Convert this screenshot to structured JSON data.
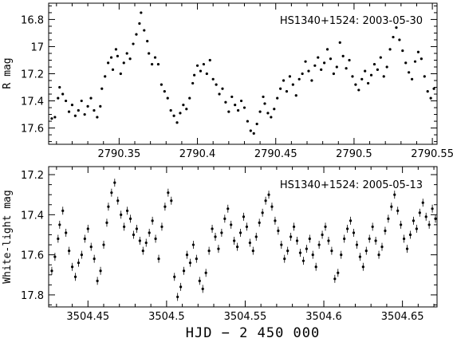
{
  "xlabel": "HJD − 2 450 000",
  "chart_data": [
    {
      "type": "scatter",
      "annotation": "HS1340+1524: 2003-05-30",
      "ylabel": "R mag",
      "xlim": [
        2790.305,
        2790.553
      ],
      "ylim": [
        17.72,
        16.68
      ],
      "y_inverted": true,
      "xticks": [
        2790.35,
        2790.4,
        2790.45,
        2790.5,
        2790.55
      ],
      "xtick_labels": [
        "2790.35",
        "2790.4",
        "2790.45",
        "2790.5",
        "2790.55"
      ],
      "yticks": [
        16.8,
        17.0,
        17.2,
        17.4,
        17.6
      ],
      "ytick_labels": [
        "16.8",
        "17",
        "17.2",
        "17.4",
        "17.6"
      ],
      "points": [
        [
          2790.307,
          17.53
        ],
        [
          2790.309,
          17.52
        ],
        [
          2790.311,
          17.38
        ],
        [
          2790.312,
          17.3
        ],
        [
          2790.314,
          17.35
        ],
        [
          2790.316,
          17.4
        ],
        [
          2790.318,
          17.48
        ],
        [
          2790.32,
          17.43
        ],
        [
          2790.322,
          17.51
        ],
        [
          2790.324,
          17.47
        ],
        [
          2790.326,
          17.4
        ],
        [
          2790.328,
          17.5
        ],
        [
          2790.33,
          17.44
        ],
        [
          2790.332,
          17.38
        ],
        [
          2790.334,
          17.47
        ],
        [
          2790.336,
          17.52
        ],
        [
          2790.338,
          17.44
        ],
        [
          2790.339,
          17.31
        ],
        [
          2790.341,
          17.22
        ],
        [
          2790.343,
          17.12
        ],
        [
          2790.345,
          17.08
        ],
        [
          2790.346,
          17.17
        ],
        [
          2790.348,
          17.02
        ],
        [
          2790.349,
          17.07
        ],
        [
          2790.351,
          17.2
        ],
        [
          2790.353,
          17.12
        ],
        [
          2790.355,
          17.05
        ],
        [
          2790.357,
          17.09
        ],
        [
          2790.359,
          16.98
        ],
        [
          2790.361,
          16.91
        ],
        [
          2790.363,
          16.83
        ],
        [
          2790.364,
          16.75
        ],
        [
          2790.366,
          16.88
        ],
        [
          2790.368,
          16.96
        ],
        [
          2790.369,
          17.05
        ],
        [
          2790.371,
          17.13
        ],
        [
          2790.373,
          17.08
        ],
        [
          2790.375,
          17.13
        ],
        [
          2790.377,
          17.28
        ],
        [
          2790.379,
          17.33
        ],
        [
          2790.381,
          17.38
        ],
        [
          2790.383,
          17.47
        ],
        [
          2790.385,
          17.51
        ],
        [
          2790.387,
          17.56
        ],
        [
          2790.389,
          17.49
        ],
        [
          2790.391,
          17.43
        ],
        [
          2790.393,
          17.46
        ],
        [
          2790.395,
          17.38
        ],
        [
          2790.397,
          17.27
        ],
        [
          2790.398,
          17.21
        ],
        [
          2790.4,
          17.14
        ],
        [
          2790.402,
          17.18
        ],
        [
          2790.404,
          17.13
        ],
        [
          2790.406,
          17.2
        ],
        [
          2790.408,
          17.1
        ],
        [
          2790.41,
          17.24
        ],
        [
          2790.412,
          17.28
        ],
        [
          2790.414,
          17.35
        ],
        [
          2790.416,
          17.31
        ],
        [
          2790.418,
          17.41
        ],
        [
          2790.42,
          17.48
        ],
        [
          2790.422,
          17.37
        ],
        [
          2790.424,
          17.43
        ],
        [
          2790.426,
          17.47
        ],
        [
          2790.428,
          17.4
        ],
        [
          2790.43,
          17.45
        ],
        [
          2790.432,
          17.55
        ],
        [
          2790.434,
          17.62
        ],
        [
          2790.436,
          17.64
        ],
        [
          2790.438,
          17.57
        ],
        [
          2790.44,
          17.48
        ],
        [
          2790.442,
          17.37
        ],
        [
          2790.443,
          17.42
        ],
        [
          2790.445,
          17.49
        ],
        [
          2790.447,
          17.52
        ],
        [
          2790.449,
          17.46
        ],
        [
          2790.451,
          17.38
        ],
        [
          2790.453,
          17.31
        ],
        [
          2790.455,
          17.25
        ],
        [
          2790.457,
          17.33
        ],
        [
          2790.459,
          17.22
        ],
        [
          2790.461,
          17.28
        ],
        [
          2790.463,
          17.36
        ],
        [
          2790.465,
          17.24
        ],
        [
          2790.467,
          17.2
        ],
        [
          2790.469,
          17.11
        ],
        [
          2790.471,
          17.18
        ],
        [
          2790.473,
          17.25
        ],
        [
          2790.475,
          17.14
        ],
        [
          2790.477,
          17.08
        ],
        [
          2790.479,
          17.17
        ],
        [
          2790.481,
          17.12
        ],
        [
          2790.483,
          17.02
        ],
        [
          2790.485,
          17.09
        ],
        [
          2790.487,
          17.2
        ],
        [
          2790.489,
          17.15
        ],
        [
          2790.491,
          16.97
        ],
        [
          2790.493,
          17.07
        ],
        [
          2790.495,
          17.16
        ],
        [
          2790.497,
          17.1
        ],
        [
          2790.499,
          17.22
        ],
        [
          2790.501,
          17.28
        ],
        [
          2790.503,
          17.32
        ],
        [
          2790.505,
          17.24
        ],
        [
          2790.507,
          17.18
        ],
        [
          2790.509,
          17.27
        ],
        [
          2790.511,
          17.21
        ],
        [
          2790.513,
          17.13
        ],
        [
          2790.515,
          17.17
        ],
        [
          2790.517,
          17.08
        ],
        [
          2790.519,
          17.22
        ],
        [
          2790.521,
          17.15
        ],
        [
          2790.523,
          17.02
        ],
        [
          2790.525,
          16.93
        ],
        [
          2790.527,
          16.86
        ],
        [
          2790.529,
          16.95
        ],
        [
          2790.531,
          17.03
        ],
        [
          2790.533,
          17.12
        ],
        [
          2790.535,
          17.19
        ],
        [
          2790.537,
          17.24
        ],
        [
          2790.539,
          17.11
        ],
        [
          2790.541,
          17.04
        ],
        [
          2790.543,
          17.09
        ],
        [
          2790.545,
          17.22
        ],
        [
          2790.547,
          17.33
        ],
        [
          2790.549,
          17.38
        ],
        [
          2790.551,
          17.31
        ]
      ]
    },
    {
      "type": "scatter",
      "annotation": "HS1340+1524: 2005-05-13",
      "ylabel": "White-light mag",
      "xlim": [
        3504.425,
        3504.672
      ],
      "ylim": [
        17.86,
        17.16
      ],
      "y_inverted": true,
      "xticks": [
        3504.45,
        3504.5,
        3504.55,
        3504.6,
        3504.65
      ],
      "xtick_labels": [
        "3504.45",
        "3504.5",
        "3504.55",
        "3504.6",
        "3504.65"
      ],
      "yticks": [
        17.2,
        17.4,
        17.6,
        17.8
      ],
      "ytick_labels": [
        "17.2",
        "17.4",
        "17.6",
        "17.8"
      ],
      "points": [
        [
          3504.427,
          17.68
        ],
        [
          3504.429,
          17.61
        ],
        [
          3504.431,
          17.52
        ],
        [
          3504.432,
          17.45
        ],
        [
          3504.434,
          17.38
        ],
        [
          3504.436,
          17.49
        ],
        [
          3504.438,
          17.58
        ],
        [
          3504.44,
          17.66
        ],
        [
          3504.442,
          17.71
        ],
        [
          3504.444,
          17.64
        ],
        [
          3504.446,
          17.6
        ],
        [
          3504.448,
          17.52
        ],
        [
          3504.45,
          17.47
        ],
        [
          3504.452,
          17.56
        ],
        [
          3504.454,
          17.62
        ],
        [
          3504.456,
          17.73
        ],
        [
          3504.458,
          17.68
        ],
        [
          3504.46,
          17.55
        ],
        [
          3504.462,
          17.44
        ],
        [
          3504.463,
          17.36
        ],
        [
          3504.465,
          17.29
        ],
        [
          3504.467,
          17.24
        ],
        [
          3504.469,
          17.33
        ],
        [
          3504.471,
          17.4
        ],
        [
          3504.473,
          17.46
        ],
        [
          3504.475,
          17.38
        ],
        [
          3504.477,
          17.42
        ],
        [
          3504.479,
          17.5
        ],
        [
          3504.481,
          17.47
        ],
        [
          3504.483,
          17.53
        ],
        [
          3504.485,
          17.58
        ],
        [
          3504.487,
          17.54
        ],
        [
          3504.489,
          17.49
        ],
        [
          3504.491,
          17.43
        ],
        [
          3504.493,
          17.52
        ],
        [
          3504.495,
          17.62
        ],
        [
          3504.497,
          17.46
        ],
        [
          3504.499,
          17.36
        ],
        [
          3504.501,
          17.29
        ],
        [
          3504.503,
          17.33
        ],
        [
          3504.505,
          17.71
        ],
        [
          3504.507,
          17.81
        ],
        [
          3504.509,
          17.76
        ],
        [
          3504.511,
          17.68
        ],
        [
          3504.513,
          17.6
        ],
        [
          3504.515,
          17.64
        ],
        [
          3504.517,
          17.55
        ],
        [
          3504.519,
          17.62
        ],
        [
          3504.521,
          17.73
        ],
        [
          3504.523,
          17.77
        ],
        [
          3504.525,
          17.69
        ],
        [
          3504.527,
          17.58
        ],
        [
          3504.529,
          17.47
        ],
        [
          3504.531,
          17.51
        ],
        [
          3504.533,
          17.57
        ],
        [
          3504.535,
          17.49
        ],
        [
          3504.537,
          17.42
        ],
        [
          3504.539,
          17.37
        ],
        [
          3504.541,
          17.45
        ],
        [
          3504.543,
          17.53
        ],
        [
          3504.545,
          17.56
        ],
        [
          3504.547,
          17.49
        ],
        [
          3504.549,
          17.41
        ],
        [
          3504.551,
          17.46
        ],
        [
          3504.553,
          17.54
        ],
        [
          3504.555,
          17.58
        ],
        [
          3504.557,
          17.51
        ],
        [
          3504.559,
          17.44
        ],
        [
          3504.561,
          17.39
        ],
        [
          3504.563,
          17.33
        ],
        [
          3504.565,
          17.3
        ],
        [
          3504.567,
          17.36
        ],
        [
          3504.569,
          17.43
        ],
        [
          3504.571,
          17.48
        ],
        [
          3504.573,
          17.55
        ],
        [
          3504.575,
          17.62
        ],
        [
          3504.577,
          17.58
        ],
        [
          3504.579,
          17.51
        ],
        [
          3504.581,
          17.46
        ],
        [
          3504.583,
          17.53
        ],
        [
          3504.585,
          17.59
        ],
        [
          3504.587,
          17.63
        ],
        [
          3504.589,
          17.57
        ],
        [
          3504.591,
          17.52
        ],
        [
          3504.593,
          17.6
        ],
        [
          3504.595,
          17.66
        ],
        [
          3504.597,
          17.55
        ],
        [
          3504.599,
          17.5
        ],
        [
          3504.601,
          17.46
        ],
        [
          3504.603,
          17.53
        ],
        [
          3504.605,
          17.58
        ],
        [
          3504.607,
          17.72
        ],
        [
          3504.609,
          17.69
        ],
        [
          3504.611,
          17.6
        ],
        [
          3504.613,
          17.52
        ],
        [
          3504.615,
          17.47
        ],
        [
          3504.617,
          17.43
        ],
        [
          3504.619,
          17.49
        ],
        [
          3504.621,
          17.55
        ],
        [
          3504.623,
          17.61
        ],
        [
          3504.625,
          17.66
        ],
        [
          3504.627,
          17.58
        ],
        [
          3504.629,
          17.52
        ],
        [
          3504.631,
          17.46
        ],
        [
          3504.633,
          17.53
        ],
        [
          3504.635,
          17.6
        ],
        [
          3504.637,
          17.56
        ],
        [
          3504.639,
          17.48
        ],
        [
          3504.641,
          17.42
        ],
        [
          3504.643,
          17.36
        ],
        [
          3504.645,
          17.3
        ],
        [
          3504.647,
          17.38
        ],
        [
          3504.649,
          17.45
        ],
        [
          3504.651,
          17.52
        ],
        [
          3504.653,
          17.57
        ],
        [
          3504.655,
          17.5
        ],
        [
          3504.657,
          17.43
        ],
        [
          3504.659,
          17.47
        ],
        [
          3504.661,
          17.39
        ],
        [
          3504.663,
          17.34
        ],
        [
          3504.665,
          17.41
        ],
        [
          3504.667,
          17.45
        ],
        [
          3504.669,
          17.37
        ],
        [
          3504.671,
          17.42
        ]
      ]
    }
  ]
}
